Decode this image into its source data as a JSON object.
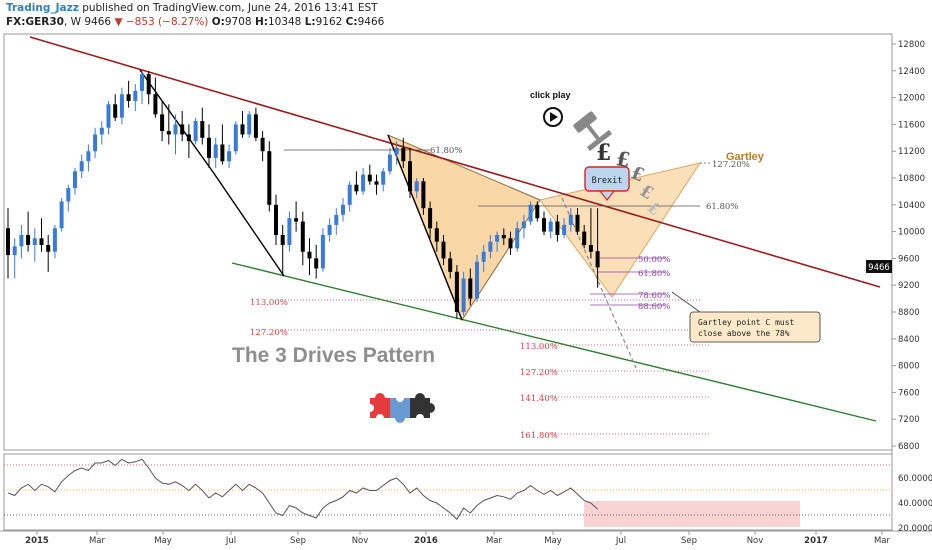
{
  "header": {
    "author": "Trading_Jazz",
    "published": "published on TradingView.com, June 24, 2016 13:41 EST",
    "symbol": "FX:GER30",
    "interval": "W",
    "last_price": "9466",
    "change": "▼ −853 (−8.27%)",
    "open_label": "O:",
    "open": "9708",
    "high_label": "H:",
    "high": "10348",
    "low_label": "L:",
    "low": "9162",
    "close_label": "C:",
    "close": "9466"
  },
  "colors": {
    "up_candle": "#3a7ad9",
    "down_candle": "#000000",
    "upper_channel": "#9b1c1c",
    "lower_channel": "#2e7d32",
    "pattern_fill": "#f7c98a",
    "fib_red": "#e0393e",
    "fib_purple": "#8e44ad",
    "rsi_line": "#555555",
    "rsi_zone": "#f8c8c8"
  },
  "chart_data": {
    "type": "candlestick",
    "price_axis": {
      "ticks": [
        "12800",
        "12400",
        "12000",
        "11600",
        "11200",
        "10800",
        "10400",
        "10000",
        "9600",
        "9200",
        "8800",
        "8400",
        "8000",
        "7600",
        "7200",
        "6800"
      ],
      "last_price_tag": "9466",
      "range": [
        6600,
        12900
      ]
    },
    "time_axis": {
      "ticks": [
        "2015",
        "Mar",
        "May",
        "Jul",
        "Sep",
        "Nov",
        "2016",
        "Mar",
        "May",
        "Jul",
        "Sep",
        "Nov",
        "2017",
        "Mar"
      ]
    },
    "rsi_axis": {
      "ticks": [
        "60.0000",
        "40.0000",
        "20.0000"
      ],
      "levels": [
        70,
        50,
        30
      ]
    },
    "candles_approx": [
      {
        "o": 10050,
        "h": 10350,
        "l": 9300,
        "c": 9650
      },
      {
        "o": 9650,
        "h": 9900,
        "l": 9300,
        "c": 9780
      },
      {
        "o": 9780,
        "h": 10100,
        "l": 9600,
        "c": 9950
      },
      {
        "o": 9950,
        "h": 10300,
        "l": 9700,
        "c": 9800
      },
      {
        "o": 9800,
        "h": 10050,
        "l": 9550,
        "c": 9900
      },
      {
        "o": 9900,
        "h": 10200,
        "l": 9700,
        "c": 9800
      },
      {
        "o": 9800,
        "h": 9950,
        "l": 9400,
        "c": 9700
      },
      {
        "o": 9700,
        "h": 10100,
        "l": 9600,
        "c": 10050
      },
      {
        "o": 10050,
        "h": 10500,
        "l": 10000,
        "c": 10450
      },
      {
        "o": 10450,
        "h": 10700,
        "l": 10300,
        "c": 10650
      },
      {
        "o": 10650,
        "h": 10950,
        "l": 10550,
        "c": 10900
      },
      {
        "o": 10900,
        "h": 11150,
        "l": 10800,
        "c": 11050
      },
      {
        "o": 11050,
        "h": 11300,
        "l": 10900,
        "c": 11200
      },
      {
        "o": 11200,
        "h": 11550,
        "l": 11100,
        "c": 11450
      },
      {
        "o": 11450,
        "h": 11650,
        "l": 11300,
        "c": 11550
      },
      {
        "o": 11550,
        "h": 11950,
        "l": 11450,
        "c": 11900
      },
      {
        "o": 11900,
        "h": 12050,
        "l": 11650,
        "c": 11700
      },
      {
        "o": 11700,
        "h": 12150,
        "l": 11600,
        "c": 12050
      },
      {
        "o": 12050,
        "h": 12250,
        "l": 11850,
        "c": 11950
      },
      {
        "o": 11950,
        "h": 12200,
        "l": 11800,
        "c": 12100
      },
      {
        "o": 12100,
        "h": 12400,
        "l": 11900,
        "c": 12350
      },
      {
        "o": 12350,
        "h": 12400,
        "l": 11900,
        "c": 12050
      },
      {
        "o": 12050,
        "h": 12300,
        "l": 11700,
        "c": 11750
      },
      {
        "o": 11750,
        "h": 11950,
        "l": 11350,
        "c": 11500
      },
      {
        "o": 11500,
        "h": 11900,
        "l": 11300,
        "c": 11450
      },
      {
        "o": 11450,
        "h": 11750,
        "l": 11150,
        "c": 11600
      },
      {
        "o": 11600,
        "h": 11800,
        "l": 11350,
        "c": 11450
      },
      {
        "o": 11450,
        "h": 11600,
        "l": 11100,
        "c": 11350
      },
      {
        "o": 11350,
        "h": 11700,
        "l": 11300,
        "c": 11650
      },
      {
        "o": 11650,
        "h": 11850,
        "l": 11300,
        "c": 11400
      },
      {
        "o": 11400,
        "h": 11600,
        "l": 10950,
        "c": 11100
      },
      {
        "o": 11100,
        "h": 11400,
        "l": 10950,
        "c": 11300
      },
      {
        "o": 11300,
        "h": 11600,
        "l": 11000,
        "c": 11050
      },
      {
        "o": 11050,
        "h": 11300,
        "l": 10950,
        "c": 11200
      },
      {
        "o": 11200,
        "h": 11650,
        "l": 11150,
        "c": 11600
      },
      {
        "o": 11600,
        "h": 11800,
        "l": 11400,
        "c": 11450
      },
      {
        "o": 11450,
        "h": 11800,
        "l": 11400,
        "c": 11750
      },
      {
        "o": 11750,
        "h": 11850,
        "l": 11350,
        "c": 11400
      },
      {
        "o": 11400,
        "h": 11500,
        "l": 11050,
        "c": 11200
      },
      {
        "o": 11200,
        "h": 11350,
        "l": 10300,
        "c": 10400
      },
      {
        "o": 10400,
        "h": 10550,
        "l": 9800,
        "c": 9950
      },
      {
        "o": 9950,
        "h": 10100,
        "l": 9350,
        "c": 9800
      },
      {
        "o": 9800,
        "h": 10300,
        "l": 9700,
        "c": 10200
      },
      {
        "o": 10200,
        "h": 10450,
        "l": 10000,
        "c": 10150
      },
      {
        "o": 10150,
        "h": 10300,
        "l": 9500,
        "c": 9700
      },
      {
        "o": 9700,
        "h": 9900,
        "l": 9350,
        "c": 9600
      },
      {
        "o": 9600,
        "h": 9800,
        "l": 9300,
        "c": 9450
      },
      {
        "o": 9450,
        "h": 10050,
        "l": 9400,
        "c": 9950
      },
      {
        "o": 9950,
        "h": 10200,
        "l": 9850,
        "c": 10100
      },
      {
        "o": 10100,
        "h": 10350,
        "l": 9950,
        "c": 10250
      },
      {
        "o": 10250,
        "h": 10500,
        "l": 10150,
        "c": 10400
      },
      {
        "o": 10400,
        "h": 10750,
        "l": 10300,
        "c": 10700
      },
      {
        "o": 10700,
        "h": 10900,
        "l": 10550,
        "c": 10600
      },
      {
        "o": 10600,
        "h": 10950,
        "l": 10550,
        "c": 10850
      },
      {
        "o": 10850,
        "h": 11000,
        "l": 10700,
        "c": 10750
      },
      {
        "o": 10750,
        "h": 10850,
        "l": 10550,
        "c": 10700
      },
      {
        "o": 10700,
        "h": 10950,
        "l": 10600,
        "c": 10900
      },
      {
        "o": 10900,
        "h": 11250,
        "l": 10850,
        "c": 11150
      },
      {
        "o": 11150,
        "h": 11350,
        "l": 11000,
        "c": 11250
      },
      {
        "o": 11250,
        "h": 11400,
        "l": 10950,
        "c": 11050
      },
      {
        "o": 11050,
        "h": 11250,
        "l": 10500,
        "c": 10600
      },
      {
        "o": 10600,
        "h": 10800,
        "l": 10500,
        "c": 10750
      },
      {
        "o": 10750,
        "h": 10800,
        "l": 10250,
        "c": 10350
      },
      {
        "o": 10350,
        "h": 10450,
        "l": 9900,
        "c": 10050
      },
      {
        "o": 10050,
        "h": 10150,
        "l": 9700,
        "c": 9850
      },
      {
        "o": 9850,
        "h": 9950,
        "l": 9500,
        "c": 9600
      },
      {
        "o": 9600,
        "h": 9700,
        "l": 9300,
        "c": 9400
      },
      {
        "o": 9400,
        "h": 9500,
        "l": 8700,
        "c": 8800
      },
      {
        "o": 8800,
        "h": 9400,
        "l": 8750,
        "c": 9300
      },
      {
        "o": 9300,
        "h": 9450,
        "l": 8900,
        "c": 9000
      },
      {
        "o": 9000,
        "h": 9650,
        "l": 8950,
        "c": 9550
      },
      {
        "o": 9550,
        "h": 9800,
        "l": 9400,
        "c": 9700
      },
      {
        "o": 9700,
        "h": 9950,
        "l": 9600,
        "c": 9850
      },
      {
        "o": 9850,
        "h": 10000,
        "l": 9700,
        "c": 9950
      },
      {
        "o": 9950,
        "h": 10050,
        "l": 9800,
        "c": 9900
      },
      {
        "o": 9900,
        "h": 10000,
        "l": 9650,
        "c": 9750
      },
      {
        "o": 9750,
        "h": 10150,
        "l": 9700,
        "c": 10050
      },
      {
        "o": 10050,
        "h": 10250,
        "l": 9900,
        "c": 10150
      },
      {
        "o": 10150,
        "h": 10450,
        "l": 10100,
        "c": 10400
      },
      {
        "o": 10400,
        "h": 10450,
        "l": 10150,
        "c": 10200
      },
      {
        "o": 10200,
        "h": 10300,
        "l": 9950,
        "c": 10000
      },
      {
        "o": 10000,
        "h": 10200,
        "l": 9900,
        "c": 10150
      },
      {
        "o": 10150,
        "h": 10250,
        "l": 9850,
        "c": 9950
      },
      {
        "o": 9950,
        "h": 10200,
        "l": 9900,
        "c": 10100
      },
      {
        "o": 10100,
        "h": 10350,
        "l": 10000,
        "c": 10250
      },
      {
        "o": 10250,
        "h": 10350,
        "l": 9950,
        "c": 10000
      },
      {
        "o": 10000,
        "h": 10100,
        "l": 9750,
        "c": 9800
      },
      {
        "o": 9800,
        "h": 10350,
        "l": 9600,
        "c": 9700
      },
      {
        "o": 9708,
        "h": 10348,
        "l": 9162,
        "c": 9466
      }
    ],
    "rsi_values_approx": [
      48,
      46,
      52,
      55,
      50,
      55,
      53,
      49,
      57,
      62,
      66,
      68,
      66,
      72,
      72,
      74,
      70,
      75,
      72,
      73,
      75,
      68,
      60,
      56,
      55,
      57,
      54,
      50,
      55,
      50,
      44,
      48,
      45,
      50,
      55,
      50,
      55,
      52,
      48,
      40,
      32,
      30,
      38,
      36,
      32,
      30,
      28,
      36,
      40,
      42,
      45,
      50,
      48,
      52,
      50,
      50,
      54,
      58,
      60,
      55,
      48,
      52,
      46,
      42,
      40,
      36,
      32,
      27,
      36,
      32,
      38,
      42,
      44,
      46,
      45,
      43,
      48,
      50,
      54,
      50,
      47,
      50,
      46,
      49,
      52,
      47,
      42,
      40,
      35
    ],
    "annotations": {
      "three_drives": "The 3 Drives Pattern",
      "gartley": "Gartley",
      "brexit": "Brexit",
      "click_play": "click play",
      "note": "Gartley point C must close above the 78%",
      "fib_618_left": "61.80%",
      "fib_1272_top": "127.20%",
      "fib_618_right": "61.80%",
      "fib_50": "50.00%",
      "fib_618_low": "61.80%",
      "fib_786": "78.60%",
      "fib_886": "88.60%",
      "ext_left_1130": "113.00%",
      "ext_left_1272": "127.20%",
      "ext_1130": "113.00%",
      "ext_1272": "127.20%",
      "ext_1414": "141.40%",
      "ext_1618": "161.80%",
      "pound_symbol": "£"
    }
  }
}
